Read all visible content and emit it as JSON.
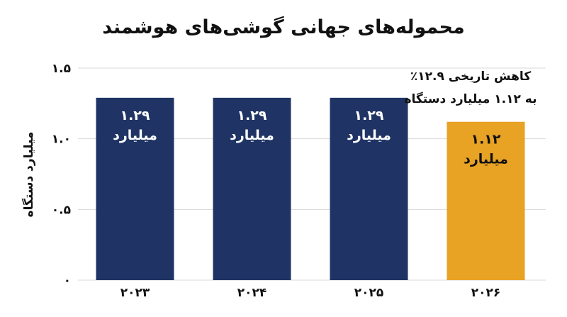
{
  "chart_data": {
    "type": "bar",
    "title": "محموله‌های جهانی گوشی‌های هوشمند",
    "ylabel": "میلیارد دستگاه",
    "xlabel": "",
    "categories": [
      "۲۰۲۳",
      "۲۰۲۴",
      "۲۰۲۵",
      "۲۰۲۶"
    ],
    "values": [
      1.29,
      1.29,
      1.29,
      1.12
    ],
    "value_labels": [
      [
        "۱.۲۹",
        "میلیارد"
      ],
      [
        "۱.۲۹",
        "میلیارد"
      ],
      [
        "۱.۲۹",
        "میلیارد"
      ],
      [
        "۱.۱۲",
        "میلیارد"
      ]
    ],
    "ylim": [
      0,
      1.5
    ],
    "yticks": [
      0,
      0.5,
      1.0,
      1.5
    ],
    "ytick_labels": [
      "۰",
      "۰.۵",
      "۱.۰",
      "۱.۵"
    ],
    "grid": true,
    "bar_colors": [
      "#1f3464",
      "#1f3464",
      "#1f3464",
      "#e8a224"
    ],
    "label_colors": [
      "#ffffff",
      "#ffffff",
      "#ffffff",
      "#111111"
    ],
    "grid_color": "#d9d9d9",
    "annotation": {
      "lines": [
        "کاهش تاریخی ۱۲.۹٪",
        "به ۱.۱۲ میلیارد دستگاه"
      ]
    }
  }
}
